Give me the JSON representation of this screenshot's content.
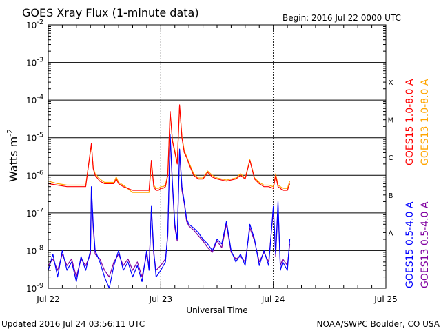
{
  "chart_data": {
    "type": "line",
    "title": "GOES Xray Flux (1-minute data)",
    "begin_label": "Begin:  2016 Jul 22 0000 UTC",
    "xlabel": "Universal Time",
    "ylabel": "Watts m",
    "ylabel_sup": "-2",
    "footer_left": "Updated 2016 Jul 24 03:56:11 UTC",
    "footer_right": "NOAA/SWPC Boulder, CO USA",
    "yscale": "log",
    "ylim": [
      1e-09,
      0.01
    ],
    "xlim": [
      0,
      72
    ],
    "x_units": "hours since 2016 Jul 22 0000 UTC",
    "x_ticks": [
      {
        "x": 0,
        "label": "Jul 22"
      },
      {
        "x": 24,
        "label": "Jul 23"
      },
      {
        "x": 48,
        "label": "Jul 24"
      },
      {
        "x": 72,
        "label": "Jul 25"
      }
    ],
    "y_ticks": [
      {
        "base": "10",
        "exp": "-9",
        "value": 1e-09
      },
      {
        "base": "10",
        "exp": "-8",
        "value": 1e-08
      },
      {
        "base": "10",
        "exp": "-7",
        "value": 1e-07
      },
      {
        "base": "10",
        "exp": "-6",
        "value": 1e-06
      },
      {
        "base": "10",
        "exp": "-5",
        "value": 1e-05
      },
      {
        "base": "10",
        "exp": "-4",
        "value": 0.0001
      },
      {
        "base": "10",
        "exp": "-3",
        "value": 0.001
      },
      {
        "base": "10",
        "exp": "-2",
        "value": 0.01
      }
    ],
    "flare_classes": [
      {
        "label": "A",
        "value": 3e-08
      },
      {
        "label": "B",
        "value": 3e-07
      },
      {
        "label": "C",
        "value": 3e-06
      },
      {
        "label": "M",
        "value": 3e-05
      },
      {
        "label": "X",
        "value": 0.0003
      }
    ],
    "grid": true,
    "legend_position": "right",
    "series": [
      {
        "name": "GOES15 1.0-8.0 A",
        "color": "#ff0000",
        "x": [
          0,
          2,
          4,
          6,
          8,
          9.2,
          9.6,
          10,
          11,
          12,
          13,
          14,
          14.5,
          15,
          16,
          18,
          20,
          21.5,
          22,
          22.5,
          23,
          23.5,
          24,
          24.5,
          25,
          25.5,
          26,
          26.5,
          27,
          27.5,
          28,
          28.5,
          29,
          29.5,
          30,
          31,
          32,
          33,
          34,
          35,
          36,
          38,
          40,
          41,
          42,
          43,
          44,
          45,
          46,
          47,
          48,
          48.5,
          49,
          49.5,
          50,
          51,
          51.5
        ],
        "values": [
          6e-07,
          5.5e-07,
          5e-07,
          5e-07,
          5e-07,
          7e-06,
          1.5e-06,
          1e-06,
          7e-07,
          6e-07,
          6e-07,
          6e-07,
          8e-07,
          6e-07,
          5e-07,
          4e-07,
          4e-07,
          4e-07,
          2.5e-06,
          5e-07,
          4e-07,
          4e-07,
          4.5e-07,
          4.5e-07,
          5e-07,
          1e-06,
          5e-05,
          8e-06,
          4e-06,
          2e-06,
          7.5e-05,
          1e-05,
          4e-06,
          3e-06,
          2e-06,
          1e-06,
          8e-07,
          8e-07,
          1.2e-06,
          9e-07,
          8e-07,
          7e-07,
          8e-07,
          1e-06,
          8e-07,
          2.5e-06,
          8e-07,
          6e-07,
          5e-07,
          5e-07,
          4.5e-07,
          1e-06,
          5e-07,
          4.5e-07,
          4e-07,
          4e-07,
          6e-07
        ]
      },
      {
        "name": "GOES13 1.0-8.0 A",
        "color": "#ffa500",
        "x": [
          0,
          2,
          4,
          6,
          8,
          9.2,
          9.6,
          10,
          11,
          12,
          13,
          14,
          14.5,
          15,
          16,
          18,
          20,
          21.5,
          22,
          22.5,
          23,
          23.5,
          24,
          24.5,
          25,
          25.5,
          26,
          26.5,
          27,
          27.5,
          28,
          28.5,
          29,
          29.5,
          30,
          31,
          32,
          33,
          34,
          35,
          36,
          38,
          40,
          41,
          42,
          43,
          44,
          45,
          46,
          47,
          48,
          48.5,
          49,
          49.5,
          50,
          51,
          51.5
        ],
        "values": [
          7e-07,
          6e-07,
          5.5e-07,
          5.5e-07,
          5.5e-07,
          6.5e-06,
          1.6e-06,
          1.1e-06,
          8e-07,
          6.5e-07,
          6.5e-07,
          6.5e-07,
          9e-07,
          6.5e-07,
          5.5e-07,
          3.5e-07,
          3.5e-07,
          3.5e-07,
          2.2e-06,
          5.5e-07,
          4.5e-07,
          4.5e-07,
          5e-07,
          5e-07,
          5.5e-07,
          1.1e-06,
          4.5e-05,
          8.5e-06,
          4.5e-06,
          2.2e-06,
          7e-05,
          1.1e-05,
          4.5e-06,
          3.2e-06,
          2.2e-06,
          1.1e-06,
          8.5e-07,
          8.5e-07,
          1.3e-06,
          1e-06,
          8.5e-07,
          7.5e-07,
          8.5e-07,
          1.1e-06,
          8.5e-07,
          2.6e-06,
          8.5e-07,
          6.5e-07,
          5.5e-07,
          5.5e-07,
          5e-07,
          1.1e-06,
          5.5e-07,
          5e-07,
          4.5e-07,
          4.5e-07,
          7e-07
        ]
      },
      {
        "name": "GOES15 0.5-4.0 A",
        "color": "#0000ff",
        "x": [
          0,
          1,
          2,
          3,
          4,
          5,
          6,
          7,
          8,
          9,
          9.2,
          9.6,
          10,
          11,
          12,
          13,
          14,
          15,
          16,
          17,
          18,
          19,
          20,
          21,
          21.5,
          22,
          22.5,
          23,
          24,
          25,
          25.5,
          26,
          26.5,
          27,
          27.5,
          28,
          28.5,
          29,
          29.5,
          30,
          31,
          32,
          33,
          34,
          35,
          36,
          37,
          38,
          39,
          40,
          41,
          42,
          43,
          44,
          45,
          46,
          47,
          48,
          48.5,
          49,
          49.5,
          50,
          51,
          51.5
        ],
        "values": [
          3e-09,
          8e-09,
          2e-09,
          1e-08,
          3e-09,
          5e-09,
          1.5e-09,
          7e-09,
          3e-09,
          1e-08,
          5e-07,
          5e-08,
          1e-08,
          5e-09,
          2e-09,
          1e-09,
          4e-09,
          1e-08,
          3e-09,
          5e-09,
          2e-09,
          4e-09,
          1.5e-09,
          1e-08,
          3e-09,
          1.5e-07,
          1e-08,
          2e-09,
          3e-09,
          5e-09,
          3e-08,
          1.2e-05,
          6e-07,
          5e-08,
          2e-08,
          5e-06,
          5e-07,
          2e-07,
          7e-08,
          5e-08,
          4e-08,
          3e-08,
          2e-08,
          1.5e-08,
          1e-08,
          2e-08,
          1.5e-08,
          6e-08,
          1e-08,
          5e-09,
          8e-09,
          4e-09,
          5e-08,
          2e-08,
          4e-09,
          1e-08,
          4e-09,
          1.5e-07,
          8e-09,
          2e-07,
          3e-09,
          5e-09,
          3e-09,
          2e-08
        ]
      },
      {
        "name": "GOES13 0.5-4.0 A",
        "color": "#8000a0",
        "x": [
          0,
          1,
          2,
          3,
          4,
          5,
          6,
          7,
          8,
          9,
          9.2,
          9.6,
          10,
          11,
          12,
          13,
          14,
          15,
          16,
          17,
          18,
          19,
          20,
          21,
          21.5,
          22,
          22.5,
          23,
          24,
          25,
          25.5,
          26,
          26.5,
          27,
          27.5,
          28,
          28.5,
          29,
          29.5,
          30,
          31,
          32,
          33,
          34,
          35,
          36,
          37,
          38,
          39,
          40,
          41,
          42,
          43,
          44,
          45,
          46,
          47,
          48,
          48.5,
          49,
          49.5,
          50,
          51,
          51.5
        ],
        "values": [
          4e-09,
          6e-09,
          3e-09,
          8e-09,
          4e-09,
          6e-09,
          2e-09,
          6e-09,
          4e-09,
          8e-09,
          4e-07,
          4e-08,
          8e-09,
          6e-09,
          3e-09,
          2e-09,
          5e-09,
          8e-09,
          4e-09,
          6e-09,
          3e-09,
          5e-09,
          2e-09,
          8e-09,
          4e-09,
          1.2e-07,
          8e-09,
          3e-09,
          4e-09,
          6e-09,
          2.5e-08,
          1e-05,
          5e-07,
          4e-08,
          1.8e-08,
          4.5e-06,
          4e-07,
          1.8e-07,
          6e-08,
          4.5e-08,
          3.5e-08,
          2.5e-08,
          1.8e-08,
          1.2e-08,
          9e-09,
          1.8e-08,
          1.2e-08,
          5e-08,
          9e-09,
          6e-09,
          7e-09,
          5e-09,
          4e-08,
          1.8e-08,
          5e-09,
          9e-09,
          5e-09,
          1.2e-07,
          7e-09,
          1.5e-07,
          4e-09,
          6e-09,
          4e-09,
          1.5e-08
        ]
      }
    ]
  }
}
